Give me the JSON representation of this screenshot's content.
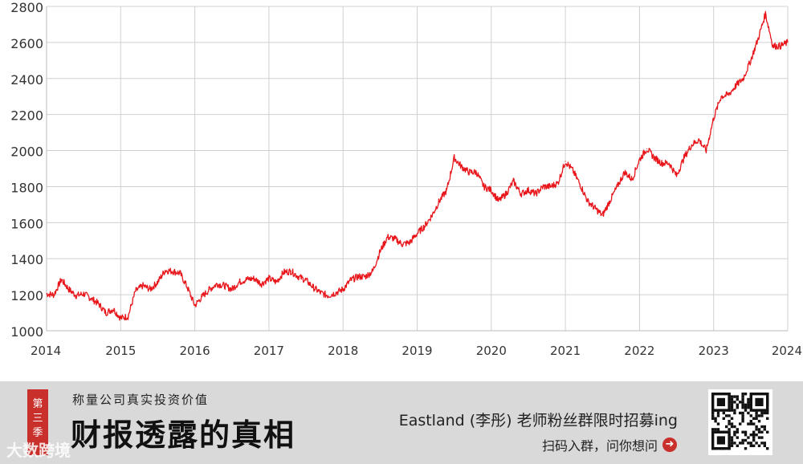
{
  "chart_data": {
    "type": "line",
    "title": "",
    "xlabel": "",
    "ylabel": "",
    "x_ticks": [
      "2014",
      "2015",
      "2016",
      "2017",
      "2018",
      "2019",
      "2020",
      "2021",
      "2022",
      "2023",
      "2024"
    ],
    "y_ticks": [
      "1000",
      "1200",
      "1400",
      "1600",
      "1800",
      "2000",
      "2200",
      "2400",
      "2600",
      "2800"
    ],
    "xlim": [
      2014,
      2024
    ],
    "ylim": [
      1000,
      2800
    ],
    "grid": true,
    "line_color": "#e8161b",
    "series": [
      {
        "x": [
          2014.0,
          2014.1,
          2014.2,
          2014.3,
          2014.4,
          2014.5,
          2014.6,
          2014.7,
          2014.8,
          2014.9,
          2015.0,
          2015.1,
          2015.2,
          2015.3,
          2015.4,
          2015.5,
          2015.6,
          2015.7,
          2015.8,
          2015.9,
          2016.0,
          2016.1,
          2016.2,
          2016.3,
          2016.4,
          2016.5,
          2016.6,
          2016.7,
          2016.8,
          2016.9,
          2017.0,
          2017.1,
          2017.2,
          2017.3,
          2017.4,
          2017.5,
          2017.6,
          2017.7,
          2017.8,
          2017.9,
          2018.0,
          2018.1,
          2018.2,
          2018.3,
          2018.4,
          2018.5,
          2018.6,
          2018.7,
          2018.8,
          2018.9,
          2019.0,
          2019.1,
          2019.2,
          2019.3,
          2019.4,
          2019.5,
          2019.6,
          2019.7,
          2019.8,
          2019.9,
          2020.0,
          2020.1,
          2020.2,
          2020.3,
          2020.4,
          2020.5,
          2020.6,
          2020.7,
          2020.8,
          2020.9,
          2021.0,
          2021.1,
          2021.2,
          2021.3,
          2021.4,
          2021.5,
          2021.6,
          2021.7,
          2021.8,
          2021.9,
          2022.0,
          2022.1,
          2022.2,
          2022.3,
          2022.4,
          2022.5,
          2022.6,
          2022.7,
          2022.8,
          2022.9,
          2023.0,
          2023.1,
          2023.2,
          2023.3,
          2023.4,
          2023.5,
          2023.6,
          2023.7,
          2023.8,
          2023.9,
          2024.0
        ],
        "y": [
          1205,
          1200,
          1285,
          1230,
          1195,
          1205,
          1180,
          1150,
          1100,
          1120,
          1070,
          1080,
          1220,
          1250,
          1230,
          1270,
          1335,
          1330,
          1320,
          1240,
          1140,
          1190,
          1230,
          1260,
          1250,
          1230,
          1270,
          1285,
          1290,
          1260,
          1290,
          1270,
          1325,
          1330,
          1300,
          1280,
          1240,
          1210,
          1195,
          1210,
          1230,
          1280,
          1300,
          1300,
          1330,
          1440,
          1520,
          1510,
          1480,
          1490,
          1540,
          1580,
          1640,
          1720,
          1780,
          1960,
          1910,
          1880,
          1880,
          1800,
          1780,
          1720,
          1760,
          1830,
          1760,
          1780,
          1760,
          1800,
          1800,
          1820,
          1940,
          1890,
          1810,
          1720,
          1680,
          1640,
          1720,
          1800,
          1880,
          1840,
          1950,
          2010,
          1960,
          1930,
          1930,
          1860,
          1960,
          2030,
          2060,
          2000,
          2180,
          2300,
          2310,
          2360,
          2400,
          2500,
          2620,
          2760,
          2580,
          2580,
          2600
        ]
      }
    ]
  },
  "banner": {
    "season_tag": [
      "第",
      "三",
      "季"
    ],
    "subtitle": "称量公司真实投资价值",
    "title": "财报透露的真相",
    "promo": "Eastland (李彤) 老师粉丝群限时招募ing",
    "cta": "扫码入群，问你想问",
    "watermark": "大数跨境"
  },
  "colors": {
    "line": "#e8161b",
    "grid": "#d0d0d0",
    "axis_text": "#333333",
    "banner_bg": "#d9d9d9",
    "accent": "#c9302c"
  }
}
